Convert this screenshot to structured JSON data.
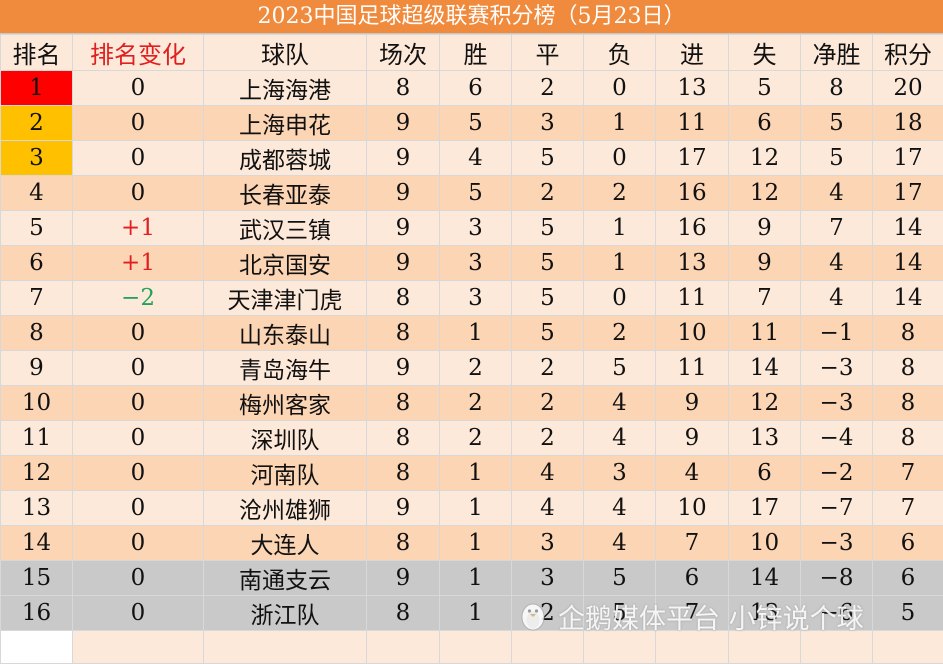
{
  "title": "2023中国足球超级联赛积分榜（5月23日）",
  "headers": {
    "rank": "排名",
    "change": "排名变化",
    "team": "球队",
    "played": "场次",
    "won": "胜",
    "draw": "平",
    "lost": "负",
    "gf": "进",
    "ga": "失",
    "gd": "净胜",
    "pts": "积分"
  },
  "rows": [
    {
      "rank": "1",
      "change": "0",
      "team": "上海海港",
      "played": "8",
      "won": "6",
      "draw": "2",
      "lost": "0",
      "gf": "13",
      "ga": "5",
      "gd": "8",
      "pts": "20"
    },
    {
      "rank": "2",
      "change": "0",
      "team": "上海申花",
      "played": "9",
      "won": "5",
      "draw": "3",
      "lost": "1",
      "gf": "11",
      "ga": "6",
      "gd": "5",
      "pts": "18"
    },
    {
      "rank": "3",
      "change": "0",
      "team": "成都蓉城",
      "played": "9",
      "won": "4",
      "draw": "5",
      "lost": "0",
      "gf": "17",
      "ga": "12",
      "gd": "5",
      "pts": "17"
    },
    {
      "rank": "4",
      "change": "0",
      "team": "长春亚泰",
      "played": "9",
      "won": "5",
      "draw": "2",
      "lost": "2",
      "gf": "16",
      "ga": "12",
      "gd": "4",
      "pts": "17"
    },
    {
      "rank": "5",
      "change": "+1",
      "team": "武汉三镇",
      "played": "9",
      "won": "3",
      "draw": "5",
      "lost": "1",
      "gf": "16",
      "ga": "9",
      "gd": "7",
      "pts": "14"
    },
    {
      "rank": "6",
      "change": "+1",
      "team": "北京国安",
      "played": "9",
      "won": "3",
      "draw": "5",
      "lost": "1",
      "gf": "13",
      "ga": "9",
      "gd": "4",
      "pts": "14"
    },
    {
      "rank": "7",
      "change": "−2",
      "team": "天津津门虎",
      "played": "8",
      "won": "3",
      "draw": "5",
      "lost": "0",
      "gf": "11",
      "ga": "7",
      "gd": "4",
      "pts": "14"
    },
    {
      "rank": "8",
      "change": "0",
      "team": "山东泰山",
      "played": "8",
      "won": "1",
      "draw": "5",
      "lost": "2",
      "gf": "10",
      "ga": "11",
      "gd": "−1",
      "pts": "8"
    },
    {
      "rank": "9",
      "change": "0",
      "team": "青岛海牛",
      "played": "9",
      "won": "2",
      "draw": "2",
      "lost": "5",
      "gf": "11",
      "ga": "14",
      "gd": "−3",
      "pts": "8"
    },
    {
      "rank": "10",
      "change": "0",
      "team": "梅州客家",
      "played": "8",
      "won": "2",
      "draw": "2",
      "lost": "4",
      "gf": "9",
      "ga": "12",
      "gd": "−3",
      "pts": "8"
    },
    {
      "rank": "11",
      "change": "0",
      "team": "深圳队",
      "played": "8",
      "won": "2",
      "draw": "2",
      "lost": "4",
      "gf": "9",
      "ga": "13",
      "gd": "−4",
      "pts": "8"
    },
    {
      "rank": "12",
      "change": "0",
      "team": "河南队",
      "played": "8",
      "won": "1",
      "draw": "4",
      "lost": "3",
      "gf": "4",
      "ga": "6",
      "gd": "−2",
      "pts": "7"
    },
    {
      "rank": "13",
      "change": "0",
      "team": "沧州雄狮",
      "played": "9",
      "won": "1",
      "draw": "4",
      "lost": "4",
      "gf": "10",
      "ga": "17",
      "gd": "−7",
      "pts": "7"
    },
    {
      "rank": "14",
      "change": "0",
      "team": "大连人",
      "played": "8",
      "won": "1",
      "draw": "3",
      "lost": "4",
      "gf": "7",
      "ga": "10",
      "gd": "−3",
      "pts": "6"
    },
    {
      "rank": "15",
      "change": "0",
      "team": "南通支云",
      "played": "9",
      "won": "1",
      "draw": "3",
      "lost": "5",
      "gf": "6",
      "ga": "14",
      "gd": "−8",
      "pts": "6"
    },
    {
      "rank": "16",
      "change": "0",
      "team": "浙江队",
      "played": "8",
      "won": "1",
      "draw": "2",
      "lost": "5",
      "gf": "7",
      "ga": "13",
      "gd": "−6",
      "pts": "5"
    }
  ],
  "watermark": "企鹅媒体平台 小锌说个球",
  "colors": {
    "title_bg": "#f08a3c",
    "row_light": "#fde9d9",
    "row_dark": "#fcd5b5",
    "relegation_gray": "#c9c9c9",
    "champion_red": "#ff0000",
    "top3_gold": "#ffc000",
    "change_up": "#e02020",
    "change_down": "#22a35a",
    "header_change_text": "#e02020"
  }
}
